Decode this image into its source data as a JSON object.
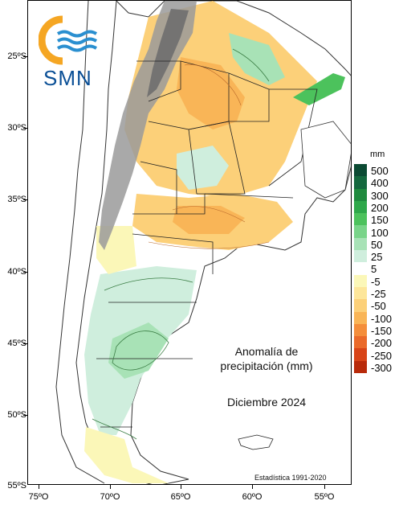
{
  "title": "Anomalía de precipitación (mm)",
  "title_lines": [
    "Anomalía de",
    "precipitación (mm)"
  ],
  "period": "Diciembre 2024",
  "statistics_note": "Estadística 1991-2020",
  "logo_text": "SMN",
  "legend": {
    "unit": "mm",
    "entries": [
      {
        "label": "500",
        "color": "#0b4a33"
      },
      {
        "label": "400",
        "color": "#14683e"
      },
      {
        "label": "300",
        "color": "#1f8a3e"
      },
      {
        "label": "200",
        "color": "#2ea84a"
      },
      {
        "label": "150",
        "color": "#4cc25c"
      },
      {
        "label": "100",
        "color": "#79d489"
      },
      {
        "label": "50",
        "color": "#a8e2b6"
      },
      {
        "label": "25",
        "color": "#cfeedd"
      },
      {
        "label": "5",
        "color": "#ffffff"
      },
      {
        "label": "-5",
        "color": "#fbf7b8"
      },
      {
        "label": "-25",
        "color": "#fde69a"
      },
      {
        "label": "-50",
        "color": "#fcd079"
      },
      {
        "label": "-100",
        "color": "#f9b557"
      },
      {
        "label": "-150",
        "color": "#f48e3b"
      },
      {
        "label": "-200",
        "color": "#ea6a2a"
      },
      {
        "label": "-250",
        "color": "#d84418"
      },
      {
        "label": "-300",
        "color": "#b82a0a"
      }
    ]
  },
  "latitude_labels": [
    "25ºS",
    "30ºS",
    "35ºS",
    "40ºS",
    "45ºS",
    "50ºS",
    "55ºS"
  ],
  "longitude_labels": [
    "75ºO",
    "70ºO",
    "65ºO",
    "60ºO",
    "55ºO"
  ],
  "colors": {
    "logo_blue": "#0a4f96",
    "logo_orange": "#f5a623",
    "terrain_gray": "#9a9a9a"
  }
}
